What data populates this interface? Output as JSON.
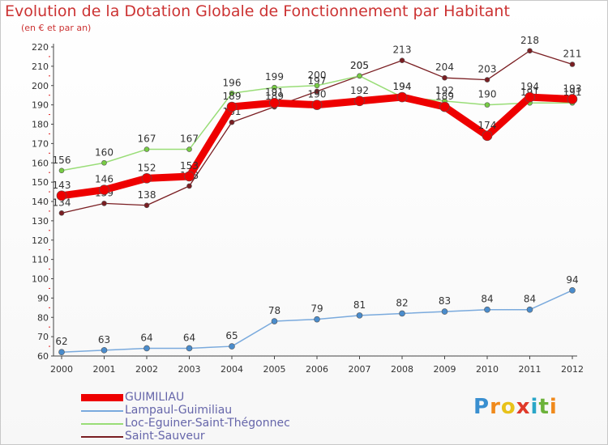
{
  "header": {
    "title": "Evolution de la Dotation Globale de Fonctionnement par Habitant",
    "subtitle": "(en € et par an)"
  },
  "logo": {
    "text": "Proxiti",
    "letters": [
      "P",
      "r",
      "o",
      "x",
      "i",
      "t",
      "i"
    ]
  },
  "chart_data": {
    "type": "line",
    "title": "Evolution de la Dotation Globale de Fonctionnement par Habitant",
    "subtitle": "(en € et par an)",
    "xlabel": "",
    "ylabel": "",
    "x": [
      "2000",
      "2001",
      "2002",
      "2003",
      "2004",
      "2005",
      "2006",
      "2007",
      "2008",
      "2009",
      "2010",
      "2011",
      "2012"
    ],
    "yticks": [
      60,
      70,
      80,
      90,
      100,
      110,
      120,
      130,
      140,
      150,
      160,
      170,
      180,
      190,
      200,
      210,
      220
    ],
    "ylim": [
      60,
      220
    ],
    "grid": false,
    "legend_position": "bottom",
    "series": [
      {
        "name": "Saint-Sauveur",
        "color": "#7a1e22",
        "marker": "#7a1e22",
        "width": 1.3,
        "r": 3,
        "values": [
          134,
          139,
          138,
          148,
          181,
          189,
          197,
          205,
          213,
          204,
          203,
          218,
          211
        ]
      },
      {
        "name": "Loc-Eguiner-Saint-Thégonnec",
        "color": "#99dd77",
        "marker": "#77cc44",
        "width": 1.5,
        "r": 3,
        "values": [
          156,
          160,
          167,
          167,
          196,
          199,
          200,
          205,
          194,
          192,
          190,
          191,
          191
        ]
      },
      {
        "name": "Lampaul-Guimiliau",
        "color": "#7aaadd",
        "marker": "#4a8ccc",
        "width": 1.5,
        "r": 3.5,
        "values": [
          62,
          63,
          64,
          64,
          65,
          78,
          79,
          81,
          82,
          83,
          84,
          84,
          94
        ]
      },
      {
        "name": "GUIMILIAU",
        "color": "#ee0000",
        "marker": "#ee0000",
        "width": 9,
        "r": 6,
        "values": [
          143,
          146,
          152,
          153,
          189,
          191,
          190,
          192,
          194,
          189,
          174,
          194,
          193
        ]
      }
    ]
  }
}
